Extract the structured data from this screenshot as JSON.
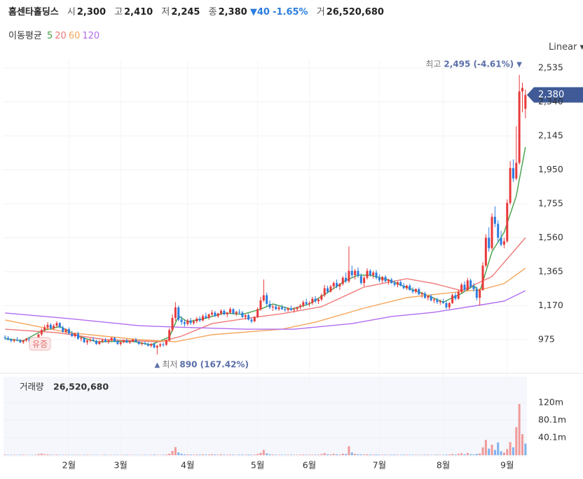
{
  "header": {
    "name": "홈센타홀딩스",
    "open_label": "시",
    "open": "2,300",
    "high_label": "고",
    "high": "2,410",
    "low_label": "저",
    "low": "2,245",
    "close_label": "종",
    "close": "2,380",
    "change": "40",
    "change_rate": "-1.65%",
    "volume_label": "거",
    "volume": "26,520,680"
  },
  "scale_mode": "Linear",
  "chart_data": {
    "type": "candlestick",
    "legend_title": "이동평균",
    "up_color": "#e8393b",
    "down_color": "#2b7de0",
    "xlim": [
      -0.5,
      171.5
    ],
    "xticks": [
      {
        "value": 21,
        "label": "2월"
      },
      {
        "value": 38,
        "label": "3월"
      },
      {
        "value": 60,
        "label": "4월"
      },
      {
        "value": 83,
        "label": "5월"
      },
      {
        "value": 100,
        "label": "6월"
      },
      {
        "value": 123,
        "label": "7월"
      },
      {
        "value": 144,
        "label": "8월"
      },
      {
        "value": 165,
        "label": "9월"
      }
    ],
    "ylim": [
      786,
      2583
    ],
    "yticks": [
      975,
      {
        "value": 1170,
        "label": "1,170"
      },
      {
        "value": 1365,
        "label": "1,365"
      },
      {
        "value": 1560,
        "label": "1,560"
      },
      {
        "value": 1755,
        "label": "1,755"
      },
      {
        "value": 1950,
        "label": "1,950"
      },
      {
        "value": 2145,
        "label": "2,145"
      },
      {
        "value": 2340,
        "label": "2,340"
      },
      {
        "value": 2535,
        "label": "2,535"
      }
    ],
    "ohlc": [
      [
        990,
        1000,
        975,
        985
      ],
      [
        985,
        995,
        970,
        975
      ],
      [
        975,
        985,
        960,
        968
      ],
      [
        968,
        980,
        958,
        975
      ],
      [
        975,
        990,
        965,
        970
      ],
      [
        970,
        978,
        955,
        960
      ],
      [
        960,
        975,
        950,
        970
      ],
      [
        970,
        985,
        962,
        980
      ],
      [
        980,
        990,
        960,
        965
      ],
      [
        965,
        975,
        950,
        958
      ],
      [
        958,
        980,
        955,
        975
      ],
      [
        975,
        1010,
        970,
        1005
      ],
      [
        1005,
        1040,
        995,
        1030
      ],
      [
        1030,
        1060,
        1020,
        1045
      ],
      [
        1045,
        1075,
        1035,
        1060
      ],
      [
        1060,
        1070,
        1030,
        1040
      ],
      [
        1040,
        1065,
        1030,
        1055
      ],
      [
        1055,
        1080,
        1045,
        1070
      ],
      [
        1070,
        1075,
        1040,
        1045
      ],
      [
        1045,
        1055,
        1015,
        1020
      ],
      [
        1020,
        1040,
        1010,
        1035
      ],
      [
        1035,
        1045,
        1005,
        1010
      ],
      [
        1010,
        1025,
        990,
        995
      ],
      [
        995,
        1015,
        985,
        1010
      ],
      [
        1010,
        1020,
        975,
        980
      ],
      [
        980,
        995,
        965,
        985
      ],
      [
        985,
        990,
        955,
        960
      ],
      [
        960,
        975,
        945,
        970
      ],
      [
        970,
        985,
        960,
        975
      ],
      [
        975,
        990,
        965,
        968
      ],
      [
        968,
        975,
        945,
        950
      ],
      [
        950,
        970,
        945,
        965
      ],
      [
        965,
        980,
        955,
        972
      ],
      [
        972,
        985,
        960,
        962
      ],
      [
        962,
        975,
        950,
        970
      ],
      [
        970,
        990,
        965,
        985
      ],
      [
        985,
        990,
        960,
        965
      ],
      [
        965,
        975,
        945,
        950
      ],
      [
        950,
        965,
        940,
        960
      ],
      [
        960,
        975,
        955,
        970
      ],
      [
        970,
        980,
        955,
        958
      ],
      [
        958,
        970,
        950,
        965
      ],
      [
        965,
        980,
        960,
        975
      ],
      [
        975,
        985,
        960,
        962
      ],
      [
        962,
        970,
        945,
        950
      ],
      [
        950,
        962,
        940,
        955
      ],
      [
        955,
        965,
        945,
        948
      ],
      [
        948,
        960,
        935,
        940
      ],
      [
        940,
        955,
        930,
        950
      ],
      [
        950,
        958,
        925,
        930
      ],
      [
        930,
        945,
        890,
        940
      ],
      [
        940,
        955,
        930,
        948
      ],
      [
        948,
        960,
        935,
        945
      ],
      [
        945,
        975,
        940,
        970
      ],
      [
        970,
        1040,
        965,
        1030
      ],
      [
        1030,
        1120,
        1020,
        1100
      ],
      [
        1100,
        1190,
        1080,
        1160
      ],
      [
        1160,
        1170,
        1080,
        1090
      ],
      [
        1090,
        1110,
        1060,
        1075
      ],
      [
        1075,
        1090,
        1050,
        1065
      ],
      [
        1065,
        1095,
        1055,
        1085
      ],
      [
        1085,
        1100,
        1060,
        1070
      ],
      [
        1070,
        1090,
        1060,
        1080
      ],
      [
        1080,
        1105,
        1070,
        1095
      ],
      [
        1095,
        1110,
        1075,
        1085
      ],
      [
        1085,
        1120,
        1080,
        1110
      ],
      [
        1110,
        1130,
        1095,
        1100
      ],
      [
        1100,
        1125,
        1090,
        1120
      ],
      [
        1120,
        1145,
        1110,
        1130
      ],
      [
        1130,
        1140,
        1105,
        1110
      ],
      [
        1110,
        1130,
        1100,
        1125
      ],
      [
        1125,
        1150,
        1115,
        1140
      ],
      [
        1140,
        1150,
        1115,
        1120
      ],
      [
        1120,
        1135,
        1105,
        1130
      ],
      [
        1130,
        1160,
        1125,
        1150
      ],
      [
        1150,
        1155,
        1120,
        1125
      ],
      [
        1125,
        1140,
        1110,
        1135
      ],
      [
        1135,
        1150,
        1120,
        1130
      ],
      [
        1130,
        1140,
        1100,
        1105
      ],
      [
        1105,
        1120,
        1090,
        1115
      ],
      [
        1115,
        1125,
        1085,
        1090
      ],
      [
        1090,
        1100,
        1070,
        1080
      ],
      [
        1080,
        1110,
        1075,
        1105
      ],
      [
        1105,
        1160,
        1100,
        1150
      ],
      [
        1150,
        1220,
        1140,
        1200
      ],
      [
        1200,
        1320,
        1190,
        1230
      ],
      [
        1230,
        1245,
        1170,
        1180
      ],
      [
        1180,
        1200,
        1150,
        1160
      ],
      [
        1160,
        1175,
        1140,
        1165
      ],
      [
        1165,
        1180,
        1145,
        1150
      ],
      [
        1150,
        1170,
        1140,
        1160
      ],
      [
        1160,
        1175,
        1145,
        1150
      ],
      [
        1150,
        1165,
        1135,
        1145
      ],
      [
        1145,
        1160,
        1135,
        1155
      ],
      [
        1155,
        1170,
        1140,
        1145
      ],
      [
        1145,
        1160,
        1130,
        1150
      ],
      [
        1150,
        1165,
        1140,
        1160
      ],
      [
        1160,
        1180,
        1150,
        1170
      ],
      [
        1170,
        1200,
        1160,
        1190
      ],
      [
        1190,
        1210,
        1170,
        1180
      ],
      [
        1180,
        1195,
        1165,
        1185
      ],
      [
        1185,
        1220,
        1175,
        1210
      ],
      [
        1210,
        1225,
        1185,
        1195
      ],
      [
        1195,
        1215,
        1180,
        1205
      ],
      [
        1205,
        1240,
        1195,
        1230
      ],
      [
        1230,
        1290,
        1220,
        1270
      ],
      [
        1270,
        1285,
        1240,
        1250
      ],
      [
        1250,
        1290,
        1245,
        1280
      ],
      [
        1280,
        1310,
        1265,
        1300
      ],
      [
        1300,
        1320,
        1270,
        1280
      ],
      [
        1280,
        1300,
        1260,
        1295
      ],
      [
        1295,
        1340,
        1285,
        1330
      ],
      [
        1330,
        1360,
        1300,
        1310
      ],
      [
        1310,
        1510,
        1300,
        1370
      ],
      [
        1370,
        1400,
        1330,
        1345
      ],
      [
        1345,
        1380,
        1320,
        1370
      ],
      [
        1370,
        1390,
        1330,
        1340
      ],
      [
        1340,
        1355,
        1290,
        1300
      ],
      [
        1300,
        1340,
        1280,
        1330
      ],
      [
        1330,
        1385,
        1320,
        1370
      ],
      [
        1370,
        1380,
        1335,
        1345
      ],
      [
        1345,
        1370,
        1325,
        1360
      ],
      [
        1360,
        1375,
        1320,
        1330
      ],
      [
        1330,
        1350,
        1305,
        1315
      ],
      [
        1315,
        1340,
        1300,
        1335
      ],
      [
        1335,
        1345,
        1305,
        1310
      ],
      [
        1310,
        1325,
        1290,
        1320
      ],
      [
        1320,
        1330,
        1295,
        1300
      ],
      [
        1300,
        1315,
        1280,
        1290
      ],
      [
        1290,
        1310,
        1275,
        1305
      ],
      [
        1305,
        1315,
        1280,
        1285
      ],
      [
        1285,
        1300,
        1265,
        1270
      ],
      [
        1270,
        1290,
        1260,
        1285
      ],
      [
        1285,
        1295,
        1255,
        1260
      ],
      [
        1260,
        1275,
        1240,
        1250
      ],
      [
        1250,
        1270,
        1240,
        1265
      ],
      [
        1265,
        1275,
        1230,
        1235
      ],
      [
        1235,
        1250,
        1215,
        1240
      ],
      [
        1240,
        1250,
        1210,
        1215
      ],
      [
        1215,
        1230,
        1200,
        1225
      ],
      [
        1225,
        1235,
        1195,
        1200
      ],
      [
        1200,
        1215,
        1185,
        1205
      ],
      [
        1205,
        1215,
        1180,
        1190
      ],
      [
        1190,
        1205,
        1175,
        1195
      ],
      [
        1195,
        1210,
        1180,
        1185
      ],
      [
        1185,
        1200,
        1150,
        1160
      ],
      [
        1160,
        1190,
        1150,
        1185
      ],
      [
        1185,
        1240,
        1180,
        1230
      ],
      [
        1230,
        1245,
        1200,
        1210
      ],
      [
        1210,
        1260,
        1205,
        1250
      ],
      [
        1250,
        1300,
        1240,
        1290
      ],
      [
        1290,
        1310,
        1250,
        1260
      ],
      [
        1260,
        1330,
        1255,
        1315
      ],
      [
        1315,
        1325,
        1270,
        1280
      ],
      [
        1280,
        1300,
        1250,
        1265
      ],
      [
        1265,
        1280,
        1200,
        1215
      ],
      [
        1215,
        1270,
        1170,
        1260
      ],
      [
        1260,
        1420,
        1255,
        1400
      ],
      [
        1400,
        1580,
        1390,
        1560
      ],
      [
        1560,
        1620,
        1480,
        1500
      ],
      [
        1500,
        1700,
        1490,
        1680
      ],
      [
        1680,
        1740,
        1620,
        1640
      ],
      [
        1640,
        1660,
        1530,
        1560
      ],
      [
        1560,
        1600,
        1510,
        1520
      ],
      [
        1520,
        1560,
        1500,
        1540
      ],
      [
        1540,
        1780,
        1530,
        1760
      ],
      [
        1760,
        2000,
        1750,
        1960
      ],
      [
        1960,
        2010,
        1880,
        1900
      ],
      [
        1900,
        2200,
        1890,
        1990
      ],
      [
        1990,
        2495,
        1980,
        2400
      ],
      [
        2400,
        2450,
        2280,
        2420
      ],
      [
        2300,
        2410,
        2245,
        2380
      ]
    ],
    "series": [
      {
        "name": "5",
        "color": "#43a047",
        "x": [
          0,
          6,
          12,
          18,
          24,
          30,
          36,
          42,
          48,
          54,
          57,
          60,
          66,
          72,
          78,
          84,
          88,
          94,
          100,
          106,
          112,
          116,
          120,
          126,
          132,
          138,
          144,
          150,
          154,
          156,
          160,
          164,
          168,
          171
        ],
        "values": [
          980,
          968,
          1025,
          1050,
          995,
          962,
          965,
          965,
          945,
          990,
          1110,
          1078,
          1098,
          1128,
          1120,
          1150,
          1180,
          1150,
          1180,
          1245,
          1315,
          1345,
          1345,
          1318,
          1275,
          1235,
          1190,
          1240,
          1285,
          1250,
          1480,
          1590,
          1800,
          2080
        ]
      },
      {
        "name": "20",
        "color": "#ef7a78",
        "x": [
          0,
          17,
          33,
          51,
          58,
          68,
          79,
          91,
          104,
          118,
          132,
          141,
          150,
          160,
          171
        ],
        "values": [
          1035,
          1015,
          975,
          963,
          995,
          1067,
          1096,
          1124,
          1164,
          1277,
          1325,
          1297,
          1256,
          1337,
          1560
        ]
      },
      {
        "name": "60",
        "color": "#f5a65b",
        "x": [
          0,
          21,
          44,
          56,
          68,
          91,
          102,
          118,
          132,
          146,
          157,
          164,
          171
        ],
        "values": [
          1088,
          1015,
          975,
          963,
          1003,
          1035,
          1075,
          1156,
          1216,
          1244,
          1264,
          1297,
          1385
        ]
      },
      {
        "name": "120",
        "color": "#b26cf0",
        "x": [
          0,
          21,
          44,
          56,
          79,
          95,
          114,
          127,
          141,
          157,
          164,
          171
        ],
        "values": [
          1128,
          1096,
          1055,
          1047,
          1035,
          1035,
          1067,
          1108,
          1132,
          1176,
          1196,
          1256
        ]
      }
    ],
    "volume": {
      "title": "거래량",
      "total": "26,520,680",
      "ylim": [
        0,
        179
      ],
      "yticks": [
        {
          "value": 40.1,
          "label": "40.1m"
        },
        {
          "value": 80.1,
          "label": "80.1m"
        },
        {
          "value": 120,
          "label": "120m"
        }
      ],
      "values": [
        1.2,
        0.9,
        0.8,
        1.0,
        0.7,
        0.9,
        1.1,
        0.8,
        0.6,
        0.7,
        1.0,
        2.5,
        3.8,
        2.2,
        1.9,
        1.1,
        0.9,
        1.3,
        0.8,
        0.7,
        0.9,
        0.6,
        0.8,
        1.0,
        0.7,
        0.6,
        0.8,
        0.9,
        0.7,
        0.6,
        0.8,
        0.5,
        0.7,
        0.9,
        0.6,
        0.7,
        0.8,
        0.6,
        0.5,
        0.7,
        0.9,
        0.8,
        0.6,
        0.7,
        0.5,
        0.6,
        0.8,
        0.7,
        0.9,
        1.4,
        0.8,
        0.7,
        0.9,
        1.5,
        3.5,
        9.8,
        18.5,
        6.2,
        3.1,
        2.0,
        1.8,
        1.5,
        1.2,
        1.6,
        1.3,
        2.0,
        1.4,
        1.7,
        2.2,
        1.5,
        1.3,
        1.9,
        1.2,
        1.1,
        1.6,
        1.4,
        1.0,
        1.2,
        1.3,
        1.1,
        1.5,
        1.2,
        1.4,
        2.8,
        5.5,
        12,
        4.1,
        2.2,
        1.5,
        1.2,
        1.0,
        1.1,
        0.9,
        1.0,
        1.2,
        0.9,
        1.0,
        1.3,
        1.6,
        1.2,
        1.1,
        1.4,
        1.2,
        1.3,
        2.5,
        4.8,
        2.0,
        1.8,
        3.2,
        1.9,
        1.5,
        3.5,
        2.8,
        20.5,
        6.0,
        3.1,
        2.2,
        1.8,
        1.5,
        2.2,
        1.4,
        1.3,
        1.6,
        1.2,
        1.1,
        1.4,
        1.0,
        1.2,
        1.3,
        1.0,
        0.9,
        1.1,
        1.2,
        0.9,
        1.0,
        1.1,
        0.8,
        0.9,
        1.0,
        1.2,
        0.8,
        0.9,
        1.1,
        1.0,
        0.9,
        1.3,
        1.6,
        2.8,
        1.5,
        3.2,
        4.5,
        2.1,
        5.0,
        2.3,
        1.8,
        3.0,
        4.2,
        18,
        35,
        15,
        24,
        12,
        29,
        9,
        6,
        14,
        30,
        18,
        64,
        117,
        48,
        26.5
      ]
    },
    "annotations": {
      "high_label": "최고",
      "high_text": "2,495 (-4.61%)",
      "low_label": "최저",
      "low_text": "890 (167.42%)",
      "event_label": "유증",
      "last_price": "2,380"
    }
  }
}
